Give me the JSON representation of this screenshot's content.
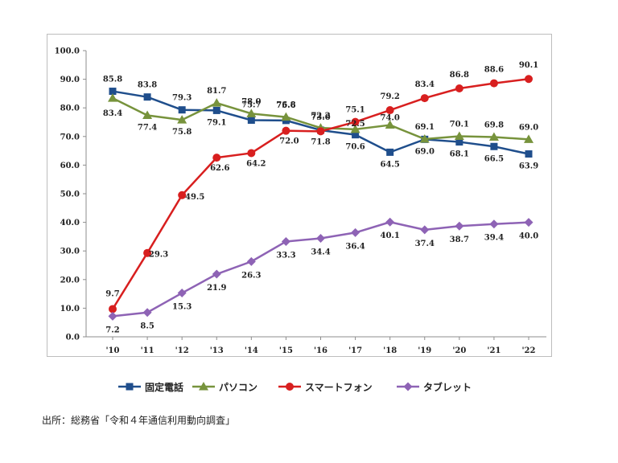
{
  "chart_data": {
    "type": "line",
    "categories": [
      "'10",
      "'11",
      "'12",
      "'13",
      "'14",
      "'15",
      "'16",
      "'17",
      "'18",
      "'19",
      "'20",
      "'21",
      "'22"
    ],
    "ylim": [
      0,
      100
    ],
    "yticks": [
      "0.0",
      "10.0",
      "20.0",
      "30.0",
      "40.0",
      "50.0",
      "60.0",
      "70.0",
      "80.0",
      "90.0",
      "100.0"
    ],
    "grid": false,
    "legend_position": "bottom",
    "series": [
      {
        "name": "固定電話",
        "color": "#1f4e8c",
        "marker": "square",
        "values": [
          85.8,
          83.8,
          79.3,
          79.1,
          75.7,
          75.6,
          72.2,
          70.6,
          64.5,
          69.0,
          68.1,
          66.5,
          63.9
        ],
        "labels": [
          "85.8",
          "83.8",
          "79.3",
          "79.1",
          "75.7",
          "75.6",
          "72.2",
          "70.6",
          "64.5",
          "69.0",
          "68.1",
          "66.5",
          "63.9"
        ]
      },
      {
        "name": "パソコン",
        "color": "#77933c",
        "marker": "triangle",
        "values": [
          83.4,
          77.4,
          75.8,
          81.7,
          78.0,
          76.8,
          73.0,
          72.5,
          74.0,
          69.1,
          70.1,
          69.8,
          69.0
        ],
        "labels": [
          "83.4",
          "77.4",
          "75.8",
          "81.7",
          "78.0",
          "76.8",
          "73.0",
          "72.5",
          "74.0",
          "69.1",
          "70.1",
          "69.8",
          "69.0"
        ]
      },
      {
        "name": "スマートフォン",
        "color": "#d81f1f",
        "marker": "circle",
        "values": [
          9.7,
          29.3,
          49.5,
          62.6,
          64.2,
          72.0,
          71.8,
          75.1,
          79.2,
          83.4,
          86.8,
          88.6,
          90.1
        ],
        "labels": [
          "9.7",
          "29.3",
          "49.5",
          "62.6",
          "64.2",
          "72.0",
          "71.8",
          "75.1",
          "79.2",
          "83.4",
          "86.8",
          "88.6",
          "90.1"
        ]
      },
      {
        "name": "タブレット",
        "color": "#8e63b5",
        "marker": "diamond",
        "values": [
          7.2,
          8.5,
          15.3,
          21.9,
          26.3,
          33.3,
          34.4,
          36.4,
          40.1,
          37.4,
          38.7,
          39.4,
          40.0
        ],
        "labels": [
          "7.2",
          "8.5",
          "15.3",
          "21.9",
          "26.3",
          "33.3",
          "34.4",
          "36.4",
          "40.1",
          "37.4",
          "38.7",
          "39.4",
          "40.0"
        ]
      }
    ]
  },
  "source": "出所：総務省「令和４年通信利用動向調査」"
}
